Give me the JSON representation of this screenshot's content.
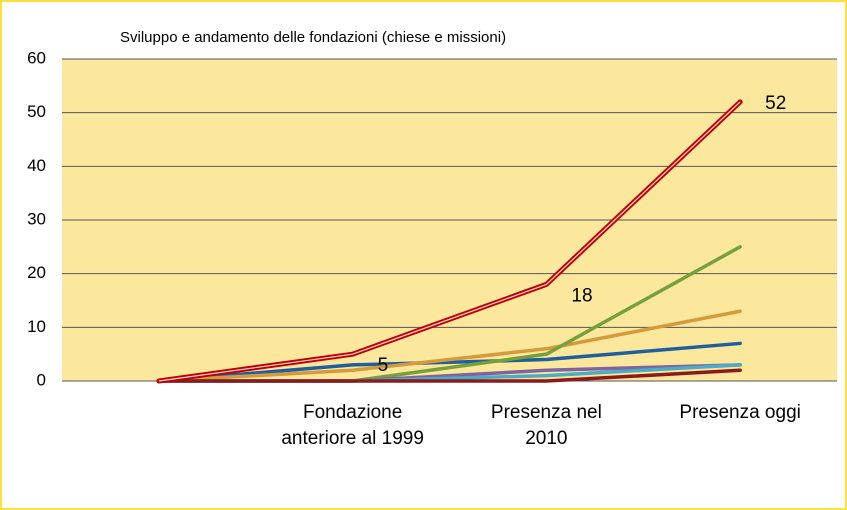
{
  "chart_data": {
    "type": "line",
    "title": "Sviluppo e andamento delle fondazioni (chiese e missioni)",
    "categories": [
      null,
      "Fondazione anteriore al 1999",
      "Presenza nel 2010",
      "Presenza oggi"
    ],
    "series": [
      {
        "color": "#1f5f9e",
        "values": [
          0,
          3,
          4,
          7
        ]
      },
      {
        "color": "#d49a3c",
        "values": [
          0,
          2,
          6,
          13
        ]
      },
      {
        "color": "#77a03a",
        "values": [
          0,
          0,
          5,
          25
        ]
      },
      {
        "color": "#8064a2",
        "values": [
          0,
          0,
          2,
          3
        ]
      },
      {
        "color": "#4bacc6",
        "values": [
          0,
          0,
          1,
          3
        ]
      },
      {
        "color": "#8b1a1a",
        "values": [
          0,
          0,
          0,
          2
        ]
      },
      {
        "color": "#c00000",
        "values": [
          0,
          5,
          18,
          52
        ],
        "value_labels": [
          null,
          "5",
          "18",
          "52"
        ]
      }
    ],
    "ylim": [
      0,
      60
    ],
    "yticks": [
      0,
      10,
      20,
      30,
      40,
      50,
      60
    ],
    "grid": true
  }
}
